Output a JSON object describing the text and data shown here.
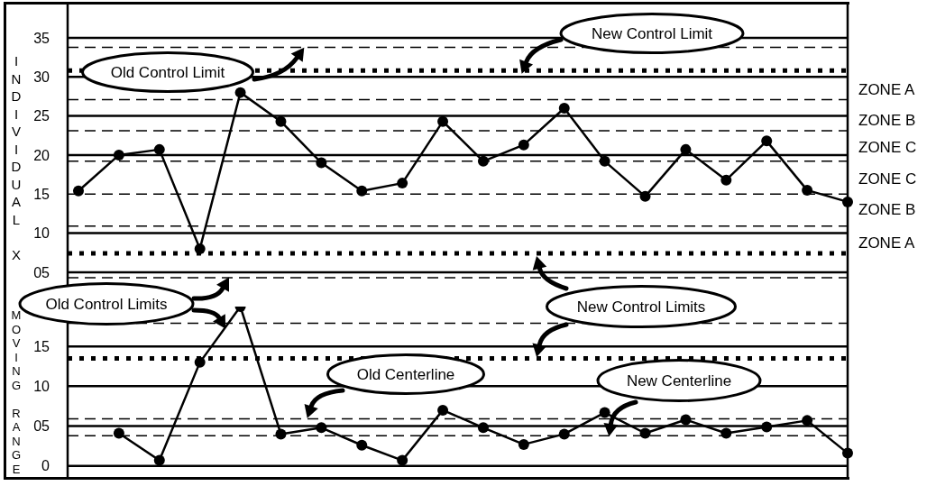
{
  "chart_data": [
    {
      "type": "line",
      "ylabel": "INDIVIDUAL X",
      "categories": [
        null,
        null,
        null,
        null,
        null,
        null,
        null,
        null,
        null,
        null,
        null,
        null,
        null,
        null,
        null,
        null,
        null,
        null,
        null,
        null
      ],
      "series": [
        {
          "color": "#000000",
          "values": [
            15.4,
            20,
            20.7,
            8,
            28,
            24.3,
            19,
            15.4,
            16.4,
            24.3,
            19.2,
            21.3,
            26,
            19.2,
            14.7,
            20.7,
            16.8,
            21.8,
            15.5,
            14
          ]
        }
      ],
      "ylim": [
        0.6,
        39.5
      ],
      "yticks": [
        {
          "value": 5,
          "label": "05"
        },
        10,
        15,
        20,
        25,
        30,
        35
      ],
      "grid": true,
      "tick_labels": "y",
      "marker": "circle",
      "line_style": "solid",
      "ref_lines": [
        {
          "axis": "y",
          "value": 33.8,
          "line_style": "dashed"
        },
        {
          "axis": "y",
          "value": 30.8,
          "line_style": "dotted"
        },
        {
          "axis": "y",
          "value": 27.1,
          "line_style": "dashed"
        },
        {
          "axis": "y",
          "value": 23.1,
          "line_style": "dashed"
        },
        {
          "axis": "y",
          "value": 19.2,
          "line_style": "dashed"
        },
        {
          "axis": "y",
          "value": 15,
          "line_style": "dashed"
        },
        {
          "axis": "y",
          "value": 10.9,
          "line_style": "dashed"
        },
        {
          "axis": "y",
          "value": 7.4,
          "line_style": "dotted"
        },
        {
          "axis": "y",
          "value": 4.3,
          "line_style": "dashed"
        }
      ],
      "annotations": [
        "Old Control Limit",
        "New Control Limit",
        "ZONE A",
        "ZONE B",
        "ZONE C",
        "ZONE C",
        "ZONE B",
        "ZONE A"
      ]
    },
    {
      "type": "line",
      "ylabel": "MOVING RANGE",
      "categories": [
        null,
        null,
        null,
        null,
        null,
        null,
        null,
        null,
        null,
        null,
        null,
        null,
        null,
        null,
        null,
        null,
        null,
        null,
        null,
        null
      ],
      "series": [
        {
          "color": "#000000",
          "values": [
            null,
            4.1,
            0.7,
            13,
            20,
            4,
            4.8,
            2.6,
            0.7,
            7,
            4.8,
            2.7,
            4,
            6.7,
            4.1,
            5.8,
            4.1,
            4.9,
            5.7,
            1.6
          ]
        }
      ],
      "ylim": [
        -1.5,
        20
      ],
      "yticks": [
        0,
        {
          "value": 5,
          "label": "05"
        },
        10,
        15
      ],
      "grid": true,
      "tick_labels": "y",
      "marker": "circle",
      "line_style": "solid",
      "ref_lines": [
        {
          "axis": "y",
          "value": 17.9,
          "line_style": "dashed"
        },
        {
          "axis": "y",
          "value": 13.5,
          "line_style": "dotted"
        },
        {
          "axis": "y",
          "value": 5.9,
          "line_style": "dashed"
        },
        {
          "axis": "y",
          "value": 3.8,
          "line_style": "dashed"
        }
      ],
      "annotations": [
        "Old Control Limits",
        "New Control Limits",
        "Old Centerline",
        "New Centerline"
      ]
    }
  ]
}
